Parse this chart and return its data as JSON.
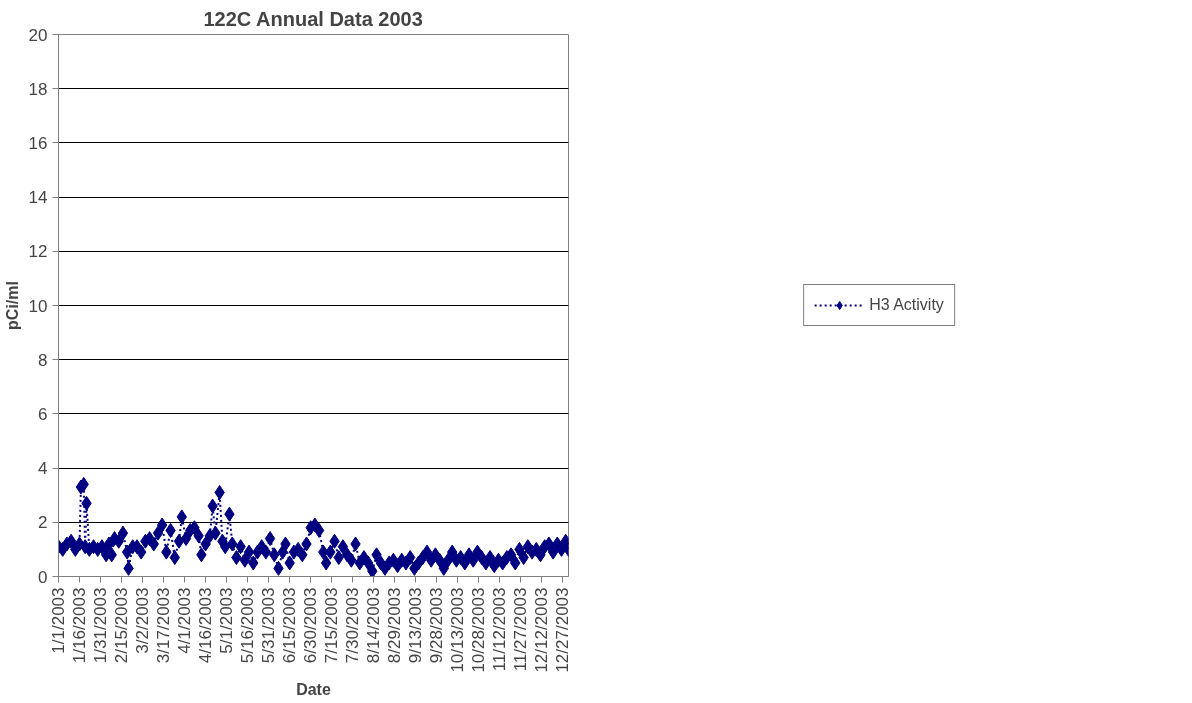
{
  "chart_data": {
    "type": "line",
    "title": "122C Annual Data 2003",
    "xlabel": "Date",
    "ylabel": "pCi/ml",
    "x": [
      "2003-01-01",
      "2003-01-04",
      "2003-01-07",
      "2003-01-10",
      "2003-01-13",
      "2003-01-16",
      "2003-01-17",
      "2003-01-19",
      "2003-01-20",
      "2003-01-21",
      "2003-01-23",
      "2003-01-26",
      "2003-01-29",
      "2003-02-01",
      "2003-02-04",
      "2003-02-06",
      "2003-02-08",
      "2003-02-10",
      "2003-02-13",
      "2003-02-16",
      "2003-02-19",
      "2003-02-20",
      "2003-02-23",
      "2003-02-26",
      "2003-03-01",
      "2003-03-04",
      "2003-03-07",
      "2003-03-10",
      "2003-03-13",
      "2003-03-16",
      "2003-03-19",
      "2003-03-22",
      "2003-03-25",
      "2003-03-28",
      "2003-03-30",
      "2003-04-02",
      "2003-04-05",
      "2003-04-08",
      "2003-04-11",
      "2003-04-13",
      "2003-04-16",
      "2003-04-19",
      "2003-04-21",
      "2003-04-23",
      "2003-04-26",
      "2003-04-28",
      "2003-04-30",
      "2003-05-03",
      "2003-05-05",
      "2003-05-08",
      "2003-05-11",
      "2003-05-14",
      "2003-05-17",
      "2003-05-20",
      "2003-05-23",
      "2003-05-26",
      "2003-05-29",
      "2003-06-01",
      "2003-06-04",
      "2003-06-07",
      "2003-06-10",
      "2003-06-12",
      "2003-06-15",
      "2003-06-18",
      "2003-06-21",
      "2003-06-24",
      "2003-06-27",
      "2003-06-30",
      "2003-07-03",
      "2003-07-06",
      "2003-07-09",
      "2003-07-11",
      "2003-07-14",
      "2003-07-17",
      "2003-07-20",
      "2003-07-23",
      "2003-07-26",
      "2003-07-29",
      "2003-08-01",
      "2003-08-04",
      "2003-08-07",
      "2003-08-10",
      "2003-08-13",
      "2003-08-16",
      "2003-08-19",
      "2003-08-22",
      "2003-08-25",
      "2003-08-28",
      "2003-08-31",
      "2003-09-03",
      "2003-09-06",
      "2003-09-09",
      "2003-09-12",
      "2003-09-15",
      "2003-09-18",
      "2003-09-21",
      "2003-09-24",
      "2003-09-27",
      "2003-09-30",
      "2003-10-03",
      "2003-10-06",
      "2003-10-09",
      "2003-10-12",
      "2003-10-15",
      "2003-10-18",
      "2003-10-21",
      "2003-10-24",
      "2003-10-27",
      "2003-10-30",
      "2003-11-02",
      "2003-11-05",
      "2003-11-08",
      "2003-11-11",
      "2003-11-14",
      "2003-11-17",
      "2003-11-20",
      "2003-11-23",
      "2003-11-26",
      "2003-11-29",
      "2003-12-02",
      "2003-12-05",
      "2003-12-08",
      "2003-12-11",
      "2003-12-14",
      "2003-12-17",
      "2003-12-20",
      "2003-12-23",
      "2003-12-26",
      "2003-12-29",
      "2003-12-31"
    ],
    "series": [
      {
        "name": "H3 Activity",
        "color": "#000080",
        "values": [
          1.1,
          1.0,
          1.2,
          1.3,
          1.0,
          1.2,
          3.3,
          3.4,
          1.1,
          2.7,
          1.0,
          1.1,
          1.0,
          1.1,
          0.8,
          1.2,
          0.8,
          1.4,
          1.3,
          1.6,
          0.9,
          0.3,
          1.1,
          1.1,
          0.9,
          1.3,
          1.4,
          1.2,
          1.6,
          1.9,
          0.9,
          1.7,
          0.7,
          1.3,
          2.2,
          1.4,
          1.7,
          1.8,
          1.5,
          0.8,
          1.2,
          1.5,
          2.6,
          1.6,
          3.1,
          1.3,
          1.1,
          2.3,
          1.2,
          0.7,
          1.1,
          0.6,
          0.9,
          0.5,
          0.9,
          1.1,
          0.9,
          1.4,
          0.8,
          0.3,
          0.9,
          1.2,
          0.5,
          0.9,
          1.0,
          0.8,
          1.2,
          1.8,
          1.9,
          1.7,
          0.9,
          0.5,
          0.9,
          1.3,
          0.7,
          1.1,
          0.8,
          0.6,
          1.2,
          0.5,
          0.7,
          0.5,
          0.2,
          0.8,
          0.5,
          0.3,
          0.5,
          0.6,
          0.4,
          0.6,
          0.5,
          0.7,
          0.3,
          0.5,
          0.7,
          0.9,
          0.6,
          0.8,
          0.6,
          0.3,
          0.6,
          0.9,
          0.6,
          0.7,
          0.5,
          0.8,
          0.6,
          0.9,
          0.7,
          0.5,
          0.7,
          0.4,
          0.6,
          0.5,
          0.7,
          0.8,
          0.5,
          1.0,
          0.7,
          1.1,
          0.9,
          1.0,
          0.8,
          1.1,
          1.2,
          0.9,
          1.2,
          1.0,
          1.3,
          1.0
        ]
      }
    ],
    "xlim": [
      "2003-01-01",
      "2003-12-31"
    ],
    "xticks": [
      {
        "value": "2003-01-01",
        "label": "1/1/2003"
      },
      {
        "value": "2003-01-16",
        "label": "1/16/2003"
      },
      {
        "value": "2003-01-31",
        "label": "1/31/2003"
      },
      {
        "value": "2003-02-15",
        "label": "2/15/2003"
      },
      {
        "value": "2003-03-02",
        "label": "3/2/2003"
      },
      {
        "value": "2003-03-17",
        "label": "3/17/2003"
      },
      {
        "value": "2003-04-01",
        "label": "4/1/2003"
      },
      {
        "value": "2003-04-16",
        "label": "4/16/2003"
      },
      {
        "value": "2003-05-01",
        "label": "5/1/2003"
      },
      {
        "value": "2003-05-16",
        "label": "5/16/2003"
      },
      {
        "value": "2003-05-31",
        "label": "5/31/2003"
      },
      {
        "value": "2003-06-15",
        "label": "6/15/2003"
      },
      {
        "value": "2003-06-30",
        "label": "6/30/2003"
      },
      {
        "value": "2003-07-15",
        "label": "7/15/2003"
      },
      {
        "value": "2003-07-30",
        "label": "7/30/2003"
      },
      {
        "value": "2003-08-14",
        "label": "8/14/2003"
      },
      {
        "value": "2003-08-29",
        "label": "8/29/2003"
      },
      {
        "value": "2003-09-13",
        "label": "9/13/2003"
      },
      {
        "value": "2003-09-28",
        "label": "9/28/2003"
      },
      {
        "value": "2003-10-13",
        "label": "10/13/2003"
      },
      {
        "value": "2003-10-28",
        "label": "10/28/2003"
      },
      {
        "value": "2003-11-12",
        "label": "11/12/2003"
      },
      {
        "value": "2003-11-27",
        "label": "11/27/2003"
      },
      {
        "value": "2003-12-12",
        "label": "12/12/2003"
      },
      {
        "value": "2003-12-27",
        "label": "12/27/2003"
      }
    ],
    "ylim": [
      0,
      20
    ],
    "yticks": [
      0,
      2,
      4,
      6,
      8,
      10,
      12,
      14,
      16,
      18,
      20
    ],
    "grid": "y",
    "legend": "right",
    "marker": "diamond",
    "line_style": "dashed"
  }
}
